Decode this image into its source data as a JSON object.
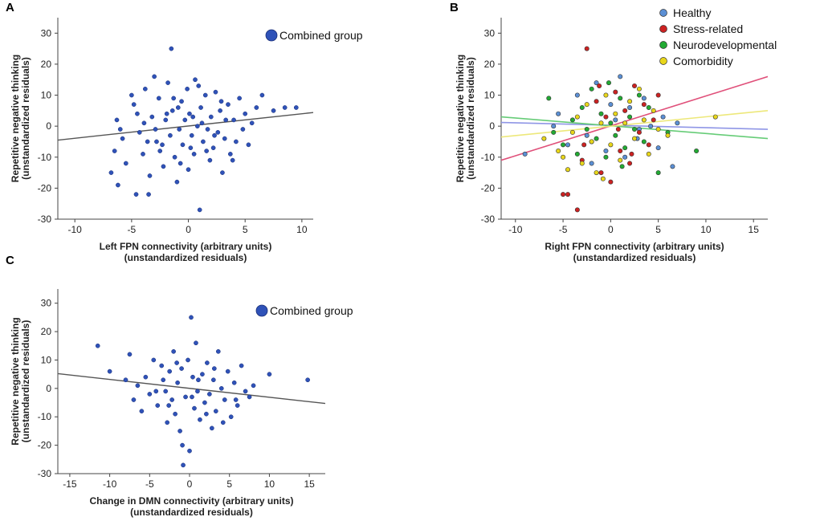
{
  "chart_data": [
    {
      "panel": "A",
      "type": "scatter",
      "title": "",
      "xlabel": "Left FPN connectivity (arbitrary units)",
      "xlabel2": "(unstandardized residuals)",
      "ylabel": "Repetitive negative thinking",
      "ylabel2": "(unstandardized residuals)",
      "xlim": [
        -11.5,
        11
      ],
      "ylim": [
        -30,
        35
      ],
      "xticks": [
        -10,
        -5,
        0,
        5,
        10
      ],
      "yticks": [
        -30,
        -20,
        -10,
        0,
        10,
        20,
        30
      ],
      "legend": [
        "Combined group"
      ],
      "legend_position": "top-right",
      "point_color": "#2f52b8",
      "fit_color": "#555555",
      "fit": [
        [
          -11.5,
          -4.5
        ],
        [
          11,
          4.4
        ]
      ],
      "points": [
        [
          -6.3,
          2
        ],
        [
          -6,
          -1
        ],
        [
          -6.5,
          -8
        ],
        [
          -6.8,
          -15
        ],
        [
          -6.2,
          -19
        ],
        [
          -5.8,
          -4
        ],
        [
          -5.5,
          -12
        ],
        [
          -5,
          10
        ],
        [
          -4.8,
          7
        ],
        [
          -4.6,
          -22
        ],
        [
          -4.5,
          4
        ],
        [
          -4.3,
          -2
        ],
        [
          -4,
          -9
        ],
        [
          -3.8,
          12
        ],
        [
          -3.5,
          -22
        ],
        [
          -3.4,
          -16
        ],
        [
          -3.2,
          3
        ],
        [
          -3,
          16
        ],
        [
          -2.8,
          -5
        ],
        [
          -2.6,
          9
        ],
        [
          -2.5,
          -8
        ],
        [
          -2.2,
          -13
        ],
        [
          -2,
          2
        ],
        [
          -1.8,
          14
        ],
        [
          -1.6,
          -3
        ],
        [
          -1.5,
          25
        ],
        [
          -1.4,
          5
        ],
        [
          -1.2,
          -10
        ],
        [
          -1,
          -18
        ],
        [
          -0.8,
          -1
        ],
        [
          -0.6,
          8
        ],
        [
          -0.5,
          -6
        ],
        [
          -0.3,
          2
        ],
        [
          -0.1,
          12
        ],
        [
          0,
          -14
        ],
        [
          0.1,
          4
        ],
        [
          0.3,
          -3
        ],
        [
          0.5,
          -9
        ],
        [
          0.6,
          15
        ],
        [
          0.8,
          0
        ],
        [
          1,
          -27
        ],
        [
          1.1,
          6
        ],
        [
          1.3,
          -5
        ],
        [
          1.5,
          10
        ],
        [
          1.7,
          -1
        ],
        [
          1.9,
          -11
        ],
        [
          2,
          3
        ],
        [
          2.2,
          -7
        ],
        [
          2.4,
          11
        ],
        [
          2.6,
          -2
        ],
        [
          2.8,
          5
        ],
        [
          3,
          -15
        ],
        [
          3.2,
          -4
        ],
        [
          3.5,
          7
        ],
        [
          3.7,
          -9
        ],
        [
          4,
          2
        ],
        [
          4.2,
          -5
        ],
        [
          4.5,
          9
        ],
        [
          4.8,
          -1
        ],
        [
          5,
          4
        ],
        [
          5.3,
          -6
        ],
        [
          5.6,
          1
        ],
        [
          6,
          6
        ],
        [
          6.5,
          10
        ],
        [
          7.5,
          5
        ],
        [
          8.5,
          6
        ],
        [
          9.5,
          6
        ],
        [
          -3.9,
          1
        ],
        [
          -2.9,
          -1
        ],
        [
          -1.9,
          4
        ],
        [
          -0.9,
          6
        ],
        [
          0.2,
          -7
        ],
        [
          1.2,
          1
        ],
        [
          2.3,
          -3
        ],
        [
          3.3,
          2
        ],
        [
          -2.3,
          -6
        ],
        [
          -1.3,
          9
        ],
        [
          0.4,
          3
        ],
        [
          1.6,
          -8
        ],
        [
          2.9,
          8
        ],
        [
          -3.6,
          -5
        ],
        [
          -0.7,
          -12
        ],
        [
          0.9,
          13
        ],
        [
          3.9,
          -11
        ]
      ]
    },
    {
      "panel": "B",
      "type": "scatter",
      "title": "",
      "xlabel": "Right FPN connectivity (arbitrary units)",
      "xlabel2": "(unstandardized residuals)",
      "ylabel": "Repetitive negative thinking",
      "ylabel2": "(unstandardized residuals)",
      "xlim": [
        -11.5,
        16.5
      ],
      "ylim": [
        -30,
        35
      ],
      "xticks": [
        -10,
        -5,
        0,
        5,
        10,
        15
      ],
      "yticks": [
        -30,
        -20,
        -10,
        0,
        10,
        20,
        30
      ],
      "legend_position": "top-right",
      "groups": [
        {
          "name": "Healthy",
          "color": "#5b8fd4",
          "fit_color": "#8f96e6",
          "fit": [
            [
              -11.5,
              1.2
            ],
            [
              16.5,
              -1.0
            ]
          ],
          "points": [
            [
              -9,
              -9
            ],
            [
              -5.5,
              4
            ],
            [
              -4.5,
              -6
            ],
            [
              -3.5,
              10
            ],
            [
              -2.5,
              -3
            ],
            [
              -1.5,
              14
            ],
            [
              -0.5,
              -8
            ],
            [
              0.5,
              2
            ],
            [
              1,
              16
            ],
            [
              1.5,
              -10
            ],
            [
              2,
              6
            ],
            [
              2.8,
              -4
            ],
            [
              3.5,
              9
            ],
            [
              4.2,
              0
            ],
            [
              5,
              -7
            ],
            [
              5.5,
              3
            ],
            [
              6.5,
              -13
            ],
            [
              7,
              1
            ],
            [
              -6,
              0
            ],
            [
              -2,
              -12
            ],
            [
              0,
              7
            ],
            [
              3,
              -1
            ]
          ]
        },
        {
          "name": "Stress-related",
          "color": "#cc2222",
          "fit_color": "#e0507a",
          "fit": [
            [
              -11.5,
              -11
            ],
            [
              16.5,
              16
            ]
          ],
          "points": [
            [
              -5,
              -22
            ],
            [
              -4.5,
              -22
            ],
            [
              -3.5,
              -27
            ],
            [
              -3,
              -11
            ],
            [
              -2.5,
              25
            ],
            [
              -2,
              -5
            ],
            [
              -1.5,
              8
            ],
            [
              -1,
              -15
            ],
            [
              -0.5,
              3
            ],
            [
              0,
              -18
            ],
            [
              0.5,
              11
            ],
            [
              1,
              -8
            ],
            [
              1.5,
              5
            ],
            [
              2,
              -12
            ],
            [
              2.5,
              13
            ],
            [
              3,
              -2
            ],
            [
              3.5,
              7
            ],
            [
              4,
              -6
            ],
            [
              4.5,
              2
            ],
            [
              5,
              10
            ],
            [
              -1.2,
              13
            ],
            [
              0.8,
              -1
            ],
            [
              -2.8,
              -6
            ],
            [
              2.2,
              -9
            ]
          ]
        },
        {
          "name": "Neurodevelopmental",
          "color": "#22aa33",
          "fit_color": "#66cc77",
          "fit": [
            [
              -11.5,
              3
            ],
            [
              16.5,
              -4
            ]
          ],
          "points": [
            [
              -6.5,
              9
            ],
            [
              -6,
              -2
            ],
            [
              -5,
              -6
            ],
            [
              -4,
              2
            ],
            [
              -3.5,
              -9
            ],
            [
              -3,
              6
            ],
            [
              -2.5,
              -1
            ],
            [
              -2,
              12
            ],
            [
              -1.5,
              -4
            ],
            [
              -1,
              4
            ],
            [
              -0.5,
              -10
            ],
            [
              0,
              1
            ],
            [
              0.5,
              -3
            ],
            [
              1,
              9
            ],
            [
              1.5,
              -7
            ],
            [
              2,
              3
            ],
            [
              2.5,
              -1
            ],
            [
              3,
              10
            ],
            [
              3.5,
              -5
            ],
            [
              4,
              6
            ],
            [
              5,
              -15
            ],
            [
              6,
              -2
            ],
            [
              9,
              -8
            ],
            [
              -0.2,
              14
            ],
            [
              1.2,
              -13
            ]
          ]
        },
        {
          "name": "Comorbidity",
          "color": "#e8d61a",
          "fit_color": "#ede87a",
          "fit": [
            [
              -11.5,
              -3.5
            ],
            [
              16.5,
              5
            ]
          ],
          "points": [
            [
              -7,
              -4
            ],
            [
              -5.5,
              -8
            ],
            [
              -5,
              -10
            ],
            [
              -4.5,
              -14
            ],
            [
              -4,
              -2
            ],
            [
              -3.5,
              3
            ],
            [
              -3,
              -12
            ],
            [
              -2.5,
              7
            ],
            [
              -2,
              -5
            ],
            [
              -1.5,
              -15
            ],
            [
              -1,
              1
            ],
            [
              -0.5,
              10
            ],
            [
              0,
              -6
            ],
            [
              0.5,
              4
            ],
            [
              1,
              -11
            ],
            [
              1.5,
              1
            ],
            [
              2,
              8
            ],
            [
              2.5,
              -4
            ],
            [
              3,
              12
            ],
            [
              3.5,
              2
            ],
            [
              4,
              -9
            ],
            [
              4.5,
              5
            ],
            [
              5,
              -1
            ],
            [
              6,
              -3
            ],
            [
              11,
              3
            ],
            [
              -0.8,
              -17
            ]
          ]
        }
      ]
    },
    {
      "panel": "C",
      "type": "scatter",
      "title": "",
      "xlabel": "Change in DMN connectivity (arbitrary units)",
      "xlabel2": "(unstandardized residuals)",
      "ylabel": "Repetitive negative thinking",
      "ylabel2": "(unstandardized residuals)",
      "xlim": [
        -16.5,
        17
      ],
      "ylim": [
        -30,
        35
      ],
      "xticks": [
        -15,
        -10,
        -5,
        0,
        5,
        10,
        15
      ],
      "yticks": [
        -30,
        -20,
        -10,
        0,
        10,
        20,
        30
      ],
      "legend": [
        "Combined group"
      ],
      "legend_position": "top-right",
      "point_color": "#2f52b8",
      "fit_color": "#555555",
      "fit": [
        [
          -16.5,
          5.2
        ],
        [
          17,
          -5.3
        ]
      ],
      "points": [
        [
          -11.5,
          15
        ],
        [
          -10,
          6
        ],
        [
          -8,
          3
        ],
        [
          -7.5,
          12
        ],
        [
          -7,
          -4
        ],
        [
          -6.5,
          1
        ],
        [
          -6,
          -8
        ],
        [
          -5.5,
          4
        ],
        [
          -5,
          -2
        ],
        [
          -4.5,
          10
        ],
        [
          -4,
          -6
        ],
        [
          -3.5,
          8
        ],
        [
          -3,
          -1
        ],
        [
          -2.8,
          -12
        ],
        [
          -2.5,
          6
        ],
        [
          -2.2,
          -4
        ],
        [
          -2,
          13
        ],
        [
          -1.8,
          -9
        ],
        [
          -1.5,
          2
        ],
        [
          -1.2,
          -15
        ],
        [
          -1,
          7
        ],
        [
          -0.8,
          -27
        ],
        [
          -0.5,
          -3
        ],
        [
          -0.2,
          10
        ],
        [
          0,
          -22
        ],
        [
          0.2,
          25
        ],
        [
          0.4,
          4
        ],
        [
          0.6,
          -7
        ],
        [
          0.8,
          16
        ],
        [
          1,
          -1
        ],
        [
          1.3,
          -11
        ],
        [
          1.6,
          5
        ],
        [
          1.9,
          -5
        ],
        [
          2.2,
          9
        ],
        [
          2.5,
          -2
        ],
        [
          2.8,
          -14
        ],
        [
          3,
          3
        ],
        [
          3.3,
          -8
        ],
        [
          3.6,
          13
        ],
        [
          4,
          0
        ],
        [
          4.4,
          -4
        ],
        [
          4.8,
          6
        ],
        [
          5.2,
          -10
        ],
        [
          5.6,
          2
        ],
        [
          6,
          -6
        ],
        [
          6.5,
          8
        ],
        [
          7,
          -1
        ],
        [
          7.5,
          -3
        ],
        [
          8,
          1
        ],
        [
          10,
          5
        ],
        [
          14.8,
          3
        ],
        [
          -0.9,
          -20
        ],
        [
          -1.6,
          9
        ],
        [
          -2.6,
          -6
        ],
        [
          0.3,
          -3
        ],
        [
          1.1,
          3
        ],
        [
          2.1,
          -9
        ],
        [
          3.1,
          7
        ],
        [
          -3.3,
          3
        ],
        [
          -4.2,
          -1
        ],
        [
          4.2,
          -12
        ],
        [
          5.8,
          -4
        ]
      ]
    }
  ]
}
